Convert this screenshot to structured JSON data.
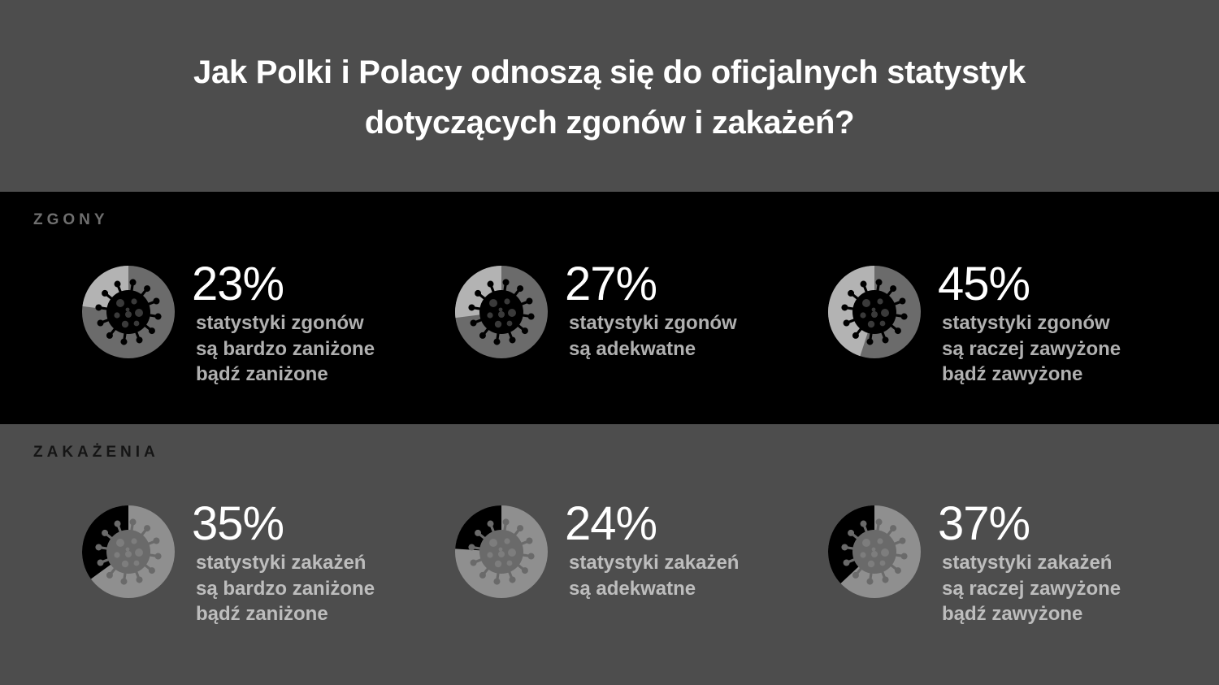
{
  "title": {
    "line1": "Jak Polki i Polacy odnoszą się do oficjalnych statystyk",
    "line2": "dotyczących zgonów i zakażeń?"
  },
  "colors": {
    "background": "#4d4d4d",
    "dark_band": "#000000",
    "zgony_ring_base": "#6b6b6b",
    "zgony_ring_value": "#b3b3b3",
    "zakazenia_ring_base": "#8f8f8f",
    "zakazenia_ring_value": "#000000"
  },
  "sections": {
    "zgony": {
      "label": "ZGONY",
      "items": [
        {
          "value_text": "23%",
          "line1": "statystyki zgonów",
          "line2": "są bardzo zaniżone",
          "line3": "bądź zaniżone"
        },
        {
          "value_text": "27%",
          "line1": "statystyki zgonów",
          "line2": "są adekwatne",
          "line3": ""
        },
        {
          "value_text": "45%",
          "line1": "statystyki zgonów",
          "line2": "są raczej zawyżone",
          "line3": "bądź zawyżone"
        }
      ]
    },
    "zakazenia": {
      "label": "ZAKAŻENIA",
      "items": [
        {
          "value_text": "35%",
          "line1": "statystyki zakażeń",
          "line2": "są bardzo zaniżone",
          "line3": "bądź zaniżone"
        },
        {
          "value_text": "24%",
          "line1": "statystyki zakażeń",
          "line2": "są adekwatne",
          "line3": ""
        },
        {
          "value_text": "37%",
          "line1": "statystyki zakażeń",
          "line2": "są raczej zawyżone",
          "line3": "bądź zawyżone"
        }
      ]
    }
  },
  "chart_data": [
    {
      "type": "pie",
      "title": "ZGONY",
      "categories": [
        "statystyki zgonów są bardzo zaniżone bądź zaniżone",
        "statystyki zgonów są adekwatne",
        "statystyki zgonów są raczej zawyżone bądź zawyżone"
      ],
      "values": [
        23,
        27,
        45
      ]
    },
    {
      "type": "pie",
      "title": "ZAKAŻENIA",
      "categories": [
        "statystyki zakażeń są bardzo zaniżone bądź zaniżone",
        "statystyki zakażeń są adekwatne",
        "statystyki zakażeń są raczej zawyżone bądź zawyżone"
      ],
      "values": [
        35,
        24,
        37
      ]
    }
  ]
}
